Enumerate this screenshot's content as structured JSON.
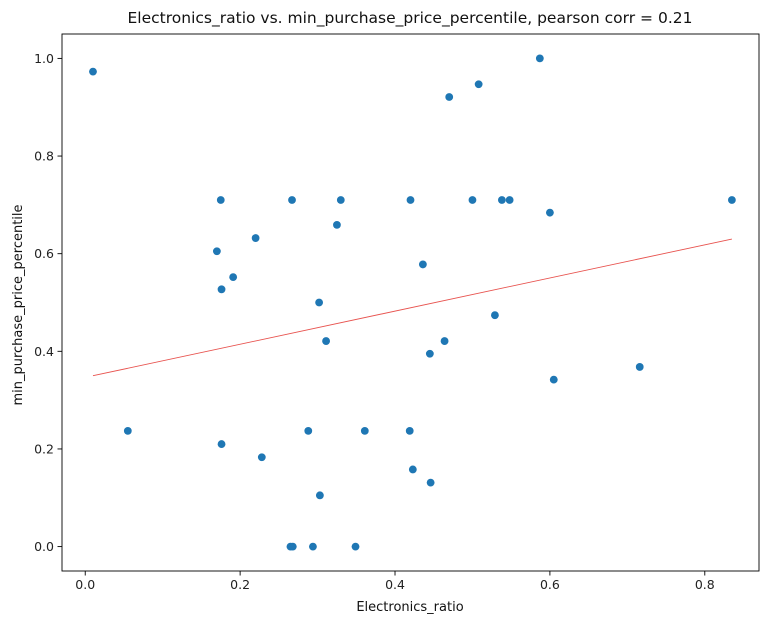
{
  "chart_data": {
    "type": "scatter",
    "title": "Electronics_ratio vs. min_purchase_price_percentile, pearson corr = 0.21",
    "xlabel": "Electronics_ratio",
    "ylabel": "min_purchase_price_percentile",
    "xlim": [
      -0.03,
      0.87
    ],
    "ylim": [
      -0.05,
      1.05
    ],
    "xticks": [
      0.0,
      0.2,
      0.4,
      0.6,
      0.8
    ],
    "xtick_labels": [
      "0.0",
      "0.2",
      "0.4",
      "0.6",
      "0.8"
    ],
    "yticks": [
      0.0,
      0.2,
      0.4,
      0.6,
      0.8,
      1.0
    ],
    "ytick_labels": [
      "0.0",
      "0.2",
      "0.4",
      "0.6",
      "0.8",
      "1.0"
    ],
    "grid": false,
    "point_color": "#1f77b4",
    "trend_color": "#e8534f",
    "x": [
      0.01,
      0.055,
      0.17,
      0.175,
      0.176,
      0.176,
      0.191,
      0.22,
      0.228,
      0.265,
      0.267,
      0.268,
      0.288,
      0.294,
      0.302,
      0.303,
      0.311,
      0.325,
      0.33,
      0.349,
      0.361,
      0.419,
      0.42,
      0.423,
      0.436,
      0.445,
      0.446,
      0.464,
      0.47,
      0.5,
      0.508,
      0.529,
      0.538,
      0.548,
      0.587,
      0.6,
      0.605,
      0.716,
      0.835
    ],
    "y": [
      0.973,
      0.237,
      0.605,
      0.71,
      0.527,
      0.21,
      0.552,
      0.632,
      0.183,
      0.0,
      0.71,
      0.0,
      0.237,
      0.0,
      0.5,
      0.105,
      0.421,
      0.659,
      0.71,
      0.0,
      0.237,
      0.237,
      0.71,
      0.158,
      0.578,
      0.395,
      0.131,
      0.421,
      0.921,
      0.71,
      0.947,
      0.474,
      0.71,
      0.71,
      1.0,
      0.684,
      0.342,
      0.368,
      0.71
    ],
    "trend_line": {
      "x": [
        0.01,
        0.835
      ],
      "y": [
        0.35,
        0.63
      ]
    }
  }
}
